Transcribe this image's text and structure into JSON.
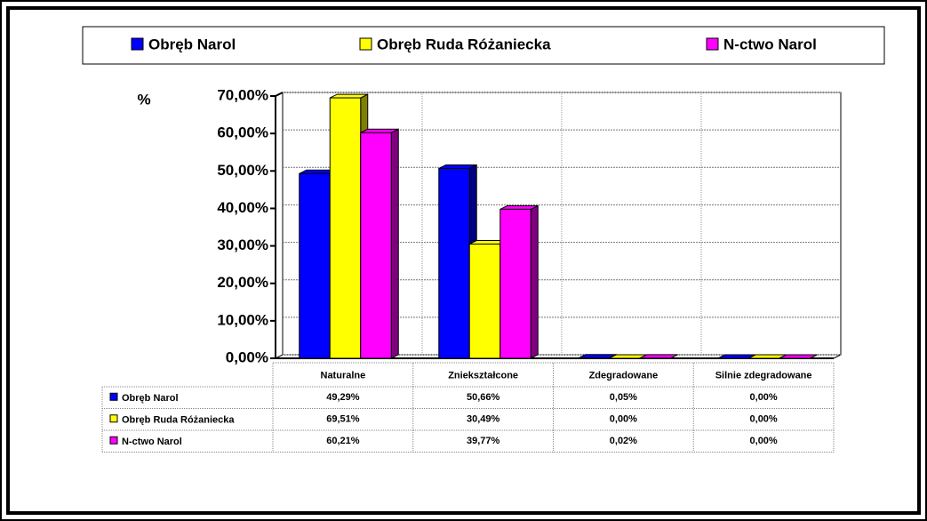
{
  "chart_data": {
    "type": "bar3d",
    "y_label": "%",
    "categories": [
      "Naturalne",
      "Zniekształcone",
      "Zdegradowane",
      "Silnie zdegradowane"
    ],
    "series": [
      {
        "name": "Obręb Narol",
        "color": "#0000ff",
        "values": [
          49.29,
          50.66,
          0.05,
          0.0
        ],
        "value_labels": [
          "49,29%",
          "50,66%",
          "0,05%",
          "0,00%"
        ]
      },
      {
        "name": "Obręb Ruda Różaniecka",
        "color": "#ffff00",
        "values": [
          69.51,
          30.49,
          0.0,
          0.0
        ],
        "value_labels": [
          "69,51%",
          "30,49%",
          "0,00%",
          "0,00%"
        ]
      },
      {
        "name": "N-ctwo Narol",
        "color": "#ff00ff",
        "values": [
          60.21,
          39.77,
          0.02,
          0.0
        ],
        "value_labels": [
          "60,21%",
          "39,77%",
          "0,02%",
          "0,00%"
        ]
      }
    ],
    "ylim": [
      0,
      70
    ],
    "yticks": [
      {
        "value": 0,
        "label": "0,00%"
      },
      {
        "value": 10,
        "label": "10,00%"
      },
      {
        "value": 20,
        "label": "20,00%"
      },
      {
        "value": 30,
        "label": "30,00%"
      },
      {
        "value": 40,
        "label": "40,00%"
      },
      {
        "value": 50,
        "label": "50,00%"
      },
      {
        "value": 60,
        "label": "60,00%"
      },
      {
        "value": 70,
        "label": "70,00%"
      }
    ],
    "grid": true,
    "legend": "top"
  }
}
